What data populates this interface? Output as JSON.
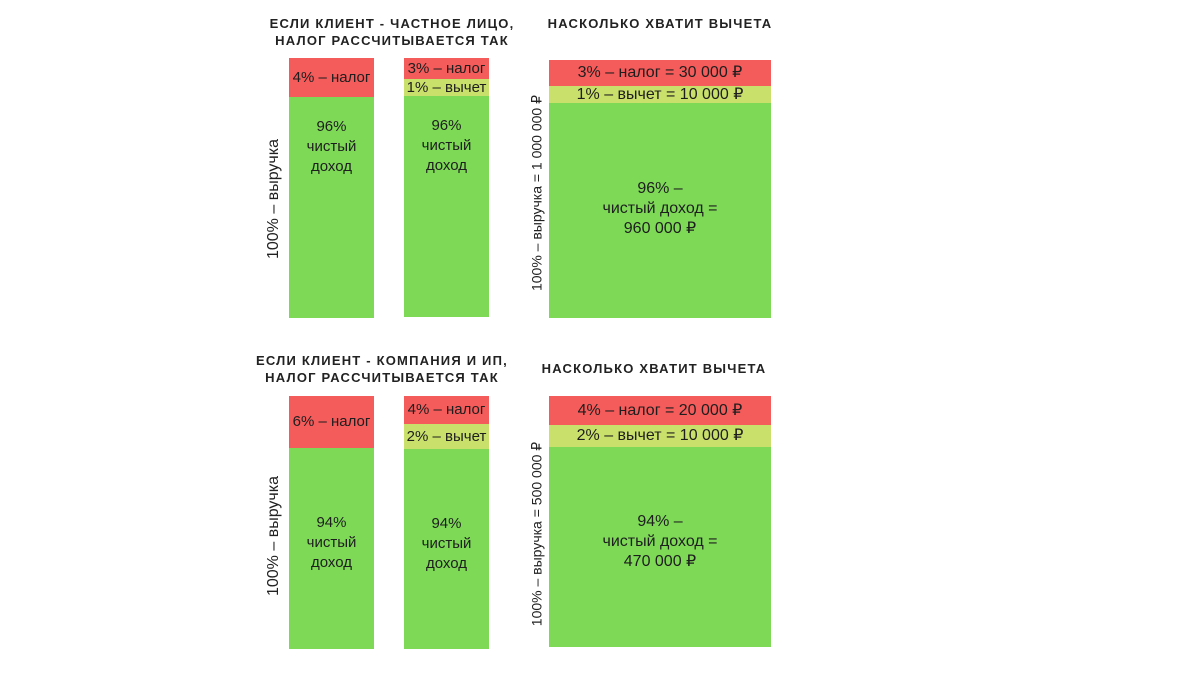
{
  "headings": {
    "individual": "ЕСЛИ КЛИЕНТ - ЧАСТНОЕ ЛИЦО,\nНАЛОГ РАССЧИТЫВАЕТСЯ ТАК",
    "deduction_1": "НАСКОЛЬКО ХВАТИТ ВЫЧЕТА",
    "company": "ЕСЛИ КЛИЕНТ - КОМПАНИЯ И ИП,\nНАЛОГ РАССЧИТЫВАЕТСЯ ТАК",
    "deduction_2": "НАСКОЛЬКО ХВАТИТ ВЫЧЕТА"
  },
  "axis_labels": {
    "revenue_1": "100% – выручка",
    "revenue_big_1": "100% – выручка = 1 000 000 ₽",
    "revenue_2": "100% – выручка",
    "revenue_big_2": "100% – выручка = 500 000 ₽"
  },
  "colors": {
    "tax": "#f45b5b",
    "deduction": "#c9e06b",
    "net_income": "#7ed957"
  },
  "chart_data": [
    {
      "type": "bar",
      "stacked": true,
      "orientation": "vertical",
      "panel": "Частное лицо, без вычета",
      "segments": [
        {
          "name": "налог",
          "value": 4,
          "label": "4% – налог"
        },
        {
          "name": "чистый доход",
          "value": 96,
          "label": "96%\nчистый\nдоход"
        }
      ]
    },
    {
      "type": "bar",
      "stacked": true,
      "orientation": "vertical",
      "panel": "Частное лицо, с вычетом",
      "segments": [
        {
          "name": "налог",
          "value": 3,
          "label": "3% – налог"
        },
        {
          "name": "вычет",
          "value": 1,
          "label": "1% – вычет"
        },
        {
          "name": "чистый доход",
          "value": 96,
          "label": "96%\nчистый\nдоход"
        }
      ]
    },
    {
      "type": "bar",
      "stacked": true,
      "orientation": "vertical",
      "panel": "Частное лицо, выручка 1 000 000 ₽",
      "segments": [
        {
          "name": "налог",
          "value": 3,
          "amount": 30000,
          "label": "3% – налог = 30 000 ₽"
        },
        {
          "name": "вычет",
          "value": 1,
          "amount": 10000,
          "label": "1% – вычет = 10 000 ₽"
        },
        {
          "name": "чистый доход",
          "value": 96,
          "amount": 960000,
          "label": "96% –\nчистый доход =\n960 000 ₽"
        }
      ]
    },
    {
      "type": "bar",
      "stacked": true,
      "orientation": "vertical",
      "panel": "Компания и ИП, без вычета",
      "segments": [
        {
          "name": "налог",
          "value": 6,
          "label": "6% – налог"
        },
        {
          "name": "чистый доход",
          "value": 94,
          "label": "94%\nчистый\nдоход"
        }
      ]
    },
    {
      "type": "bar",
      "stacked": true,
      "orientation": "vertical",
      "panel": "Компания и ИП, с вычетом",
      "segments": [
        {
          "name": "налог",
          "value": 4,
          "label": "4% – налог"
        },
        {
          "name": "вычет",
          "value": 2,
          "label": "2% – вычет"
        },
        {
          "name": "чистый доход",
          "value": 94,
          "label": "94%\nчистый\nдоход"
        }
      ]
    },
    {
      "type": "bar",
      "stacked": true,
      "orientation": "vertical",
      "panel": "Компания и ИП, выручка 500 000 ₽",
      "segments": [
        {
          "name": "налог",
          "value": 4,
          "amount": 20000,
          "label": "4% – налог = 20 000 ₽"
        },
        {
          "name": "вычет",
          "value": 2,
          "amount": 10000,
          "label": "2% – вычет = 10 000 ₽"
        },
        {
          "name": "чистый доход",
          "value": 94,
          "amount": 470000,
          "label": "94% –\nчистый доход =\n470 000 ₽"
        }
      ]
    }
  ]
}
